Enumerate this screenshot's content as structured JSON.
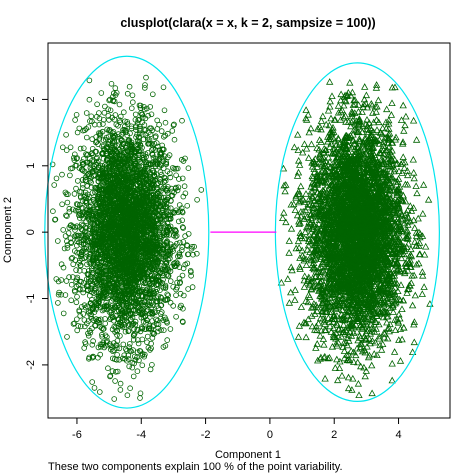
{
  "chart_data": {
    "type": "scatter",
    "title": "clusplot(clara(x = x, k = 2, sampsize = 100))",
    "xlabel": "Component 1",
    "ylabel": "Component 2",
    "subtitle": "These two components explain 100 % of the point variability.",
    "xlim": [
      -6.9,
      5.6
    ],
    "ylim": [
      -2.8,
      2.85
    ],
    "x_ticks": [
      -6,
      -4,
      -2,
      0,
      2,
      4
    ],
    "y_ticks": [
      -2,
      -1,
      0,
      1,
      2
    ],
    "x_tick_labels": [
      "-6",
      "-4",
      "-2",
      "0",
      "2",
      "4"
    ],
    "y_tick_labels": [
      "-2",
      "-1",
      "0",
      "1",
      "2"
    ],
    "grid": false,
    "colors": {
      "points": "#006400",
      "ellipse": "#00e5ee",
      "connector": "#ff00ff"
    },
    "clusters": [
      {
        "marker": "circle",
        "center": [
          -4.5,
          0.0
        ],
        "spread": [
          0.75,
          0.8
        ],
        "ellipse": {
          "center": [
            -4.45,
            0.0
          ],
          "radii": [
            2.55,
            2.65
          ]
        }
      },
      {
        "marker": "triangle",
        "center": [
          2.7,
          0.0
        ],
        "spread": [
          0.75,
          0.8
        ],
        "ellipse": {
          "center": [
            2.72,
            0.0
          ],
          "radii": [
            2.55,
            2.55
          ]
        }
      }
    ],
    "connector": {
      "x": [
        -1.85,
        0.2
      ],
      "y": [
        0.0,
        0.0
      ]
    }
  }
}
